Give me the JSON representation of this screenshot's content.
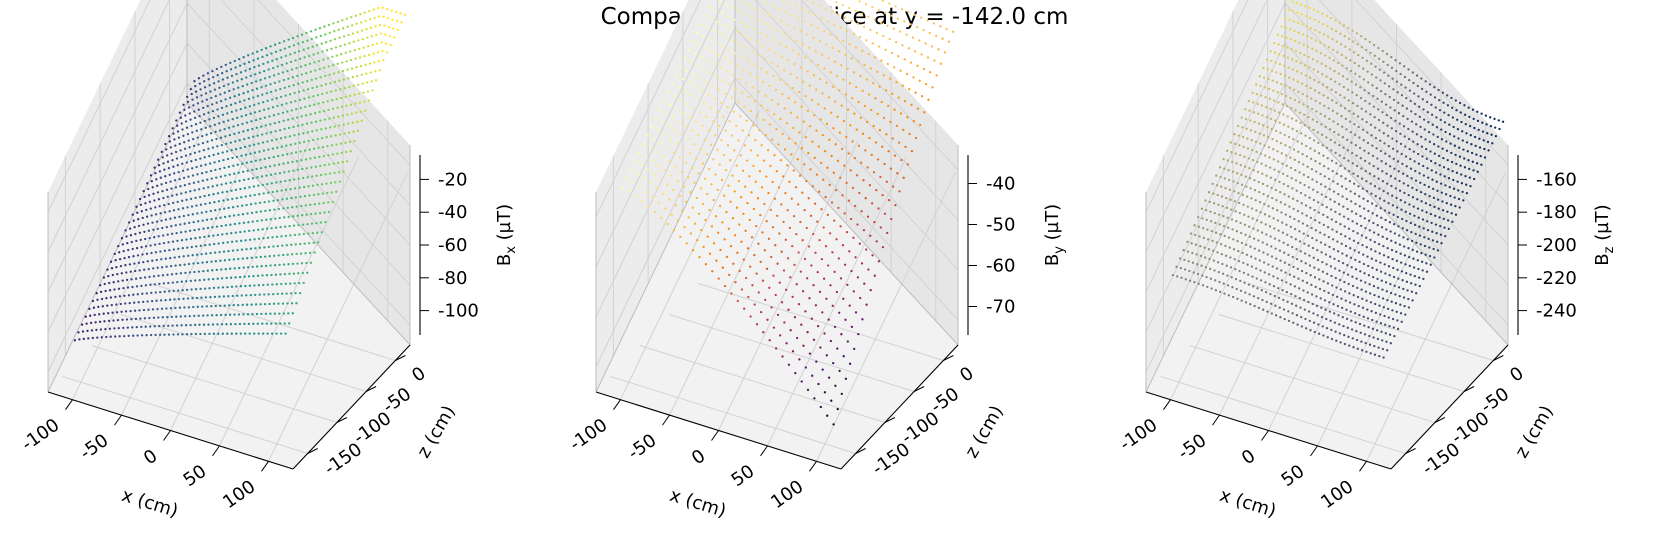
{
  "figure": {
    "title": "Comparison Data, slice at y = -142.0 cm"
  },
  "chart_data": [
    {
      "type": "scatter3d",
      "title_symbol": "B",
      "title_subscript": "x",
      "xlabel": "x (cm)",
      "ylabel": "z (cm)",
      "zlabel": "B",
      "zlabel_subscript": "x",
      "zlabel_unit": "(µT)",
      "xticks": [
        "-100",
        "-50",
        "0",
        "50",
        "100"
      ],
      "yticks": [
        "-150",
        "-100",
        "-50",
        "0"
      ],
      "zticks": [
        "-20",
        "-40",
        "-60",
        "-80",
        "-100"
      ],
      "xlim": [
        -125,
        125
      ],
      "ylim": [
        -160,
        25
      ],
      "zlim": [
        -105,
        -15
      ],
      "colormap": "viridis",
      "grid": true,
      "surface": {
        "x_min": -120,
        "x_max": 120,
        "z_min": -145,
        "z_max": 20,
        "value_min": -103,
        "value_max": -20,
        "nx": 48,
        "ny": 34
      }
    },
    {
      "type": "scatter3d",
      "title_symbol": "B",
      "title_subscript": "y",
      "xlabel": "x (cm)",
      "ylabel": "z (cm)",
      "zlabel": "B",
      "zlabel_subscript": "y",
      "zlabel_unit": "(µT)",
      "xticks": [
        "-100",
        "-50",
        "0",
        "50",
        "100"
      ],
      "yticks": [
        "-150",
        "-100",
        "-50",
        "0"
      ],
      "zticks": [
        "-40",
        "-50",
        "-60",
        "-70"
      ],
      "xlim": [
        -125,
        125
      ],
      "ylim": [
        -160,
        25
      ],
      "zlim": [
        -78,
        -38
      ],
      "colormap": "inferno",
      "grid": true,
      "surface": {
        "x_min": -120,
        "x_max": 120,
        "z_min": -145,
        "z_max": 20,
        "value_min": -78,
        "value_max": -40,
        "nx": 34,
        "ny": 30
      }
    },
    {
      "type": "scatter3d",
      "title_symbol": "B",
      "title_subscript": "z",
      "xlabel": "x (cm)",
      "ylabel": "z (cm)",
      "zlabel": "B",
      "zlabel_subscript": "z",
      "zlabel_unit": "(µT)",
      "xticks": [
        "-100",
        "-50",
        "0",
        "50",
        "100"
      ],
      "yticks": [
        "-150",
        "-100",
        "-50",
        "0"
      ],
      "zticks": [
        "-160",
        "-180",
        "-200",
        "-220",
        "-240"
      ],
      "xlim": [
        -125,
        125
      ],
      "ylim": [
        -160,
        25
      ],
      "zlim": [
        -250,
        -155
      ],
      "colormap": "cividis",
      "grid": true,
      "surface": {
        "x_min": -120,
        "x_max": 120,
        "z_min": -145,
        "z_max": 20,
        "value_min": -245,
        "value_max": -198,
        "nx": 50,
        "ny": 34
      }
    }
  ]
}
